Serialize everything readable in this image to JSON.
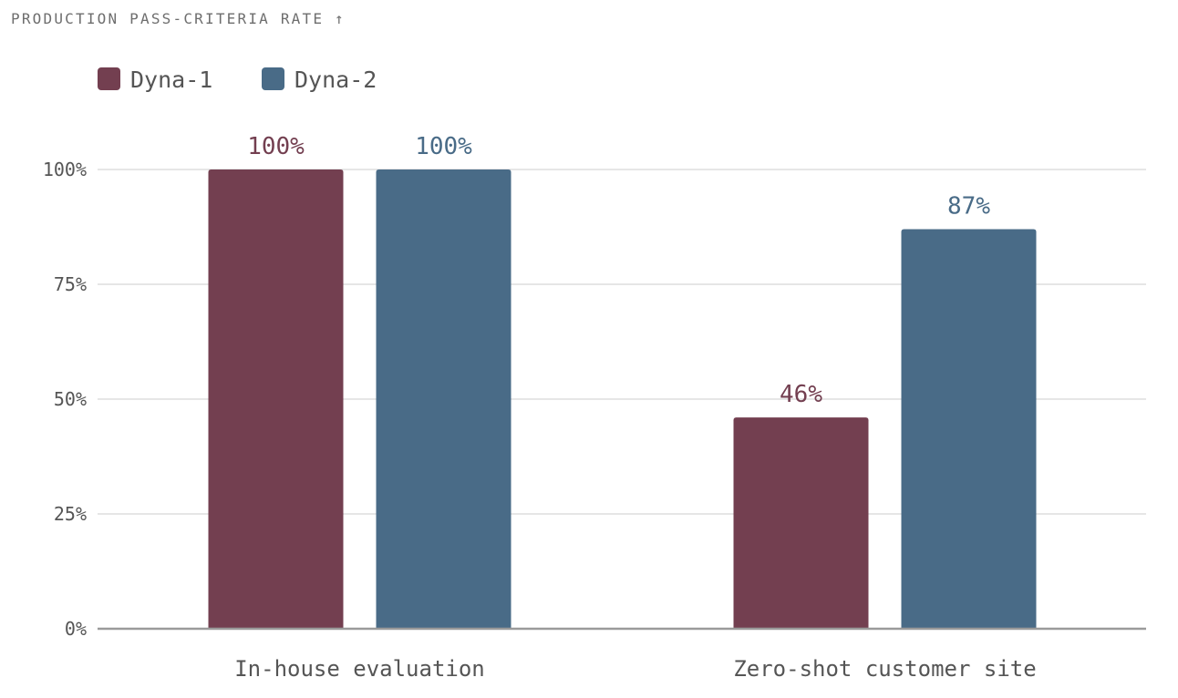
{
  "chart_data": {
    "type": "bar",
    "title": "PRODUCTION PASS-CRITERIA RATE ↑",
    "categories": [
      "In-house evaluation",
      "Zero-shot customer site"
    ],
    "series": [
      {
        "name": "Dyna-1",
        "values": [
          100,
          46
        ],
        "color": "#733F50"
      },
      {
        "name": "Dyna-2",
        "values": [
          100,
          87
        ],
        "color": "#496B87"
      }
    ],
    "value_suffix": "%",
    "ylim": [
      0,
      100
    ],
    "yticks": [
      0,
      25,
      50,
      75,
      100
    ],
    "ytick_labels": [
      "0%",
      "25%",
      "50%",
      "75%",
      "100%"
    ],
    "grid": true,
    "legend": "top-left",
    "xlabel": "",
    "ylabel": ""
  },
  "colors": {
    "grid": "#E6E6E6",
    "axis": "#9A9A9A",
    "text": "#555555",
    "title": "#6E6E6E"
  }
}
